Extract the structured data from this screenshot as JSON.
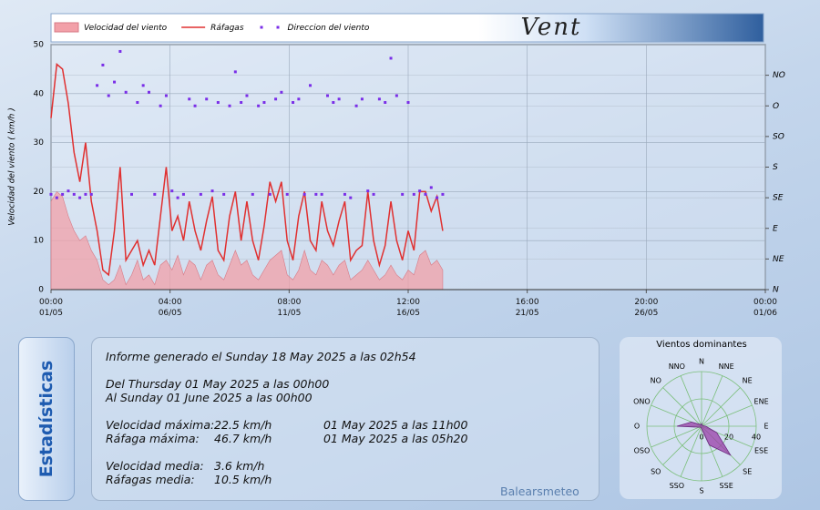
{
  "chart_data": [
    {
      "type": "line",
      "title": "Vent",
      "ylabel": "Velocidad del viento ( km/h )",
      "x": [
        0,
        0.25,
        0.5,
        0.75,
        1,
        1.25,
        1.5,
        1.75,
        2,
        2.25,
        2.5,
        2.75,
        3,
        3.25,
        3.5,
        3.75,
        4,
        4.25,
        4.5,
        4.75,
        5,
        5.25,
        5.5,
        5.75,
        6,
        6.25,
        6.5,
        6.75,
        7,
        7.25,
        7.5,
        7.75,
        8,
        8.25,
        8.5,
        8.75,
        9,
        9.25,
        9.5,
        9.75,
        10,
        10.25,
        10.5,
        10.75,
        11,
        11.25,
        11.5,
        11.75,
        12,
        12.25,
        12.5,
        12.75,
        13,
        13.25,
        13.5,
        13.75,
        14,
        14.25,
        14.5,
        14.75,
        15,
        15.25,
        15.5,
        15.75,
        16,
        16.25,
        16.5,
        16.75,
        17
      ],
      "xlim": [
        0,
        31
      ],
      "xticks": [
        {
          "value": 0,
          "label": "00:00\n01/05"
        },
        {
          "value": 5.1667,
          "label": "04:00\n06/05"
        },
        {
          "value": 10.3333,
          "label": "08:00\n11/05"
        },
        {
          "value": 15.5,
          "label": "12:00\n16/05"
        },
        {
          "value": 20.6667,
          "label": "16:00\n21/05"
        },
        {
          "value": 25.8333,
          "label": "20:00\n26/05"
        },
        {
          "value": 31,
          "label": "00:00\n01/06"
        }
      ],
      "ylim": [
        0,
        50
      ],
      "yticks": [
        0,
        10,
        20,
        30,
        40,
        50
      ],
      "y2lim": [
        0,
        360
      ],
      "y2ticks": [
        {
          "value": 0,
          "label": "N"
        },
        {
          "value": 45,
          "label": "NE"
        },
        {
          "value": 90,
          "label": "E"
        },
        {
          "value": 135,
          "label": "SE"
        },
        {
          "value": 180,
          "label": "S"
        },
        {
          "value": 225,
          "label": "SO"
        },
        {
          "value": 270,
          "label": "O"
        },
        {
          "value": 315,
          "label": "NO"
        }
      ],
      "grid": true,
      "series": [
        {
          "name": "Velocidad del viento",
          "type": "area",
          "color": "#f2a0a8",
          "values": [
            18,
            20,
            19,
            15,
            12,
            10,
            11,
            8,
            6,
            2,
            1,
            2,
            5,
            1,
            3,
            6,
            2,
            3,
            1,
            5,
            6,
            4,
            7,
            3,
            6,
            5,
            2,
            5,
            6,
            3,
            2,
            5,
            8,
            5,
            6,
            3,
            2,
            4,
            6,
            7,
            8,
            3,
            2,
            4,
            8,
            4,
            3,
            6,
            5,
            3,
            5,
            6,
            2,
            3,
            4,
            6,
            4,
            2,
            3,
            5,
            3,
            2,
            4,
            3,
            7,
            8,
            5,
            6,
            4
          ]
        },
        {
          "name": "Ráfagas",
          "type": "line",
          "color": "#e03030",
          "values": [
            35,
            46,
            45,
            38,
            28,
            22,
            30,
            18,
            12,
            4,
            3,
            12,
            25,
            6,
            8,
            10,
            5,
            8,
            5,
            15,
            25,
            12,
            15,
            10,
            18,
            12,
            8,
            14,
            19,
            8,
            6,
            15,
            20,
            10,
            18,
            10,
            6,
            13,
            22,
            18,
            22,
            10,
            6,
            15,
            20,
            10,
            8,
            18,
            12,
            9,
            14,
            18,
            6,
            8,
            9,
            20,
            10,
            5,
            9,
            18,
            10,
            6,
            12,
            8,
            20,
            20,
            16,
            19,
            12
          ]
        },
        {
          "name": "Direccion del viento",
          "type": "scatter",
          "axis": "y2",
          "color": "#7a2ee8",
          "values": [
            140,
            135,
            140,
            145,
            140,
            135,
            140,
            140,
            300,
            330,
            285,
            305,
            350,
            290,
            140,
            275,
            300,
            290,
            140,
            270,
            285,
            145,
            135,
            140,
            280,
            270,
            140,
            280,
            145,
            275,
            140,
            270,
            320,
            275,
            285,
            140,
            270,
            275,
            140,
            280,
            290,
            140,
            275,
            280,
            140,
            300,
            140,
            140,
            285,
            275,
            280,
            140,
            135,
            270,
            280,
            145,
            140,
            280,
            275,
            340,
            285,
            140,
            275,
            140,
            145,
            140,
            150,
            135,
            140
          ]
        }
      ]
    },
    {
      "type": "radar",
      "title": "Vientos dominantes",
      "color": "#9a3fa8",
      "categories": [
        "N",
        "NNE",
        "NE",
        "ENE",
        "E",
        "ESE",
        "SE",
        "SSE",
        "S",
        "SSO",
        "SO",
        "OSO",
        "O",
        "ONO",
        "NO",
        "NNO"
      ],
      "values": [
        2,
        1,
        1,
        1,
        3,
        12,
        30,
        15,
        2,
        1,
        1,
        2,
        18,
        8,
        2,
        1
      ],
      "rlim": [
        0,
        40
      ],
      "rticks": [
        0,
        20,
        40
      ]
    }
  ],
  "stats": {
    "tab": "Estadísticas",
    "generated": "Informe generado el Sunday 18 May 2025 a las 02h54",
    "from": "Del Thursday 01 May 2025 a las 00h00",
    "to": "Al Sunday 01 June 2025 a las 00h00",
    "rows": [
      [
        "Velocidad máxima:",
        "22.5 km/h",
        "01 May 2025 a las 11h00"
      ],
      [
        "Ráfaga máxima:",
        "46.7 km/h",
        "01 May 2025 a las 05h20"
      ],
      [
        "Velocidad media:",
        "3.6 km/h"
      ],
      [
        "Ráfagas media:",
        "10.5 km/h"
      ]
    ],
    "footer": "Balearsmeteo"
  }
}
